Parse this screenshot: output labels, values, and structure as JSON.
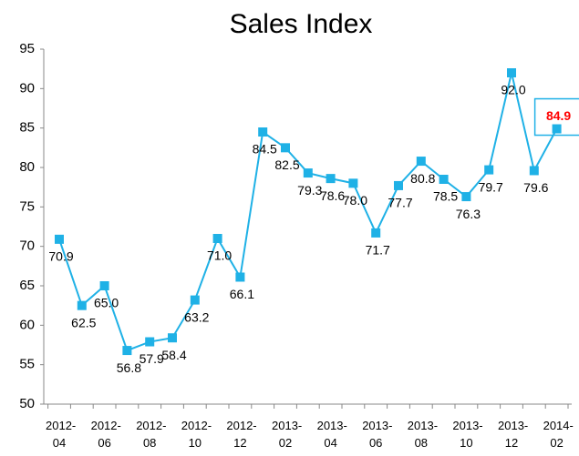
{
  "chart_data": {
    "type": "line",
    "title": "Sales Index",
    "categories": [
      "2012-04",
      null,
      "2012-06",
      null,
      "2012-08",
      null,
      "2012-10",
      null,
      "2012-12",
      null,
      "2013-02",
      null,
      "2013-04",
      null,
      "2013-06",
      null,
      "2013-08",
      null,
      "2013-10",
      null,
      "2013-12",
      null,
      "2014-02"
    ],
    "values": [
      70.9,
      62.5,
      65.0,
      56.8,
      57.9,
      58.4,
      63.2,
      71.0,
      66.1,
      84.5,
      82.5,
      79.3,
      78.6,
      78.0,
      71.7,
      77.7,
      80.8,
      78.5,
      76.3,
      79.7,
      92.0,
      79.6,
      84.9
    ],
    "value_labels": [
      "70.9",
      "62.5",
      "65.0",
      "56.8",
      "57.9",
      "58.4",
      "63.2",
      "71.0",
      "66.1",
      "84.5",
      "82.5",
      "79.3",
      "78.6",
      "78.0",
      "71.7",
      "77.7",
      "80.8",
      "78.5",
      "76.3",
      "79.7",
      "92.0",
      "79.6",
      "84.9"
    ],
    "color": "#1fb1e6",
    "highlight": {
      "index": 22,
      "color": "#ff0000"
    },
    "ylim": [
      50,
      95
    ],
    "yticks": [
      50,
      55,
      60,
      65,
      70,
      75,
      80,
      85,
      90,
      95
    ],
    "grid": false
  }
}
